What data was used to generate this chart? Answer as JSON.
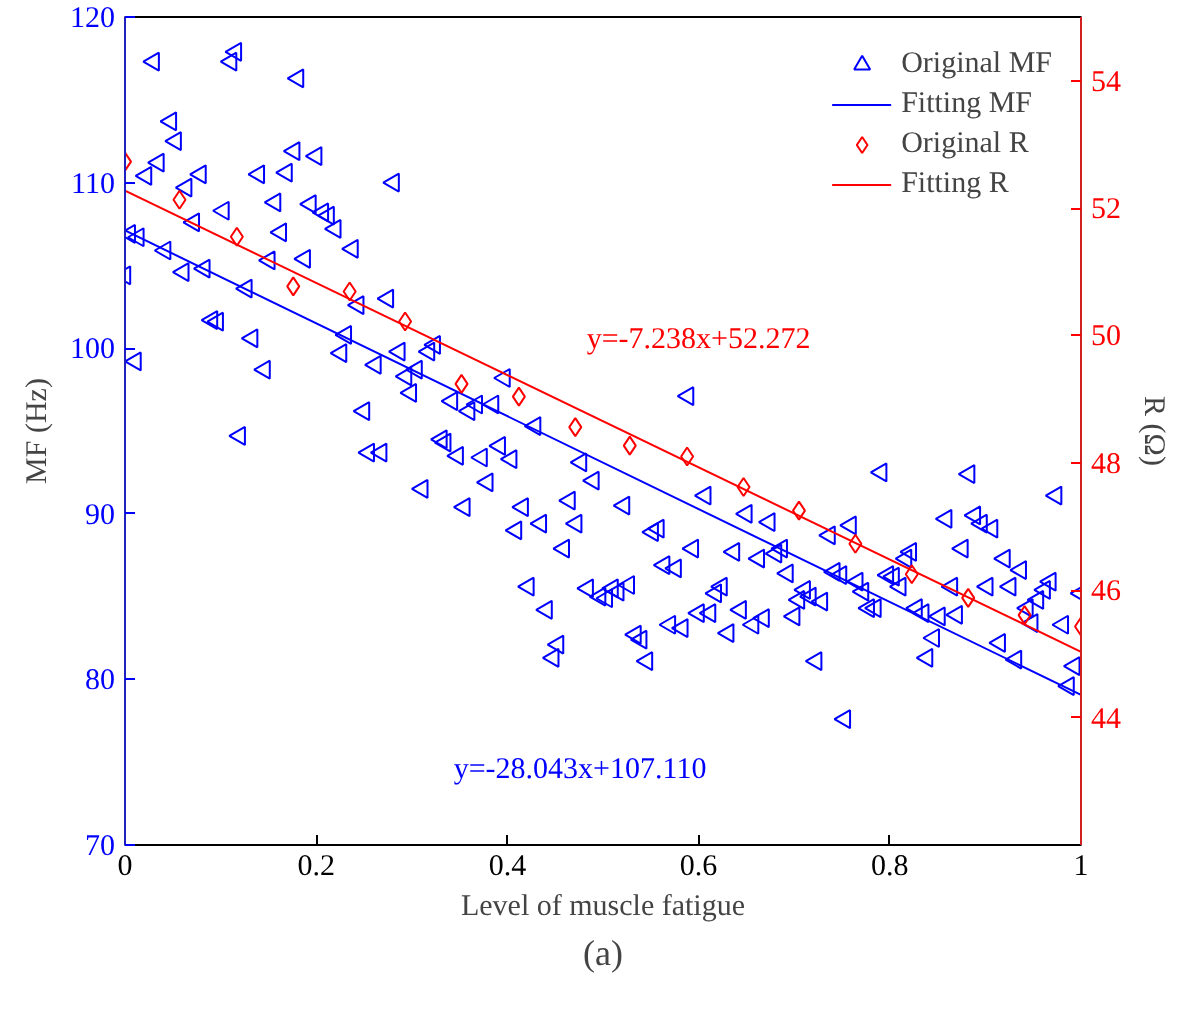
{
  "chart_data": {
    "type": "scatter",
    "xlabel": "Level of muscle fatigue",
    "ylabel": "MF (Hz)",
    "y2label": "R (Ω)",
    "xlim": [
      0,
      1
    ],
    "xticks": [
      0,
      0.2,
      0.4,
      0.6,
      0.8,
      1
    ],
    "ylim": [
      70,
      120
    ],
    "yticks": [
      70,
      80,
      90,
      100,
      110,
      120
    ],
    "y2lim": [
      42,
      55
    ],
    "y2ticks": [
      44,
      46,
      48,
      50,
      52,
      54
    ],
    "grid": false,
    "legend": "top right",
    "series": [
      {
        "name": "Original MF",
        "marker": "triangle",
        "color": "#0000ff",
        "x": [
          0,
          0.005,
          0.014,
          0.011,
          0.022,
          0.03,
          0.035,
          0.042,
          0.048,
          0.053,
          0.061,
          0.064,
          0.072,
          0.079,
          0.083,
          0.091,
          0.097,
          0.103,
          0.111,
          0.116,
          0.12,
          0.127,
          0.133,
          0.14,
          0.146,
          0.151,
          0.157,
          0.163,
          0.169,
          0.177,
          0.181,
          0.188,
          0.194,
          0.2,
          0.207,
          0.213,
          0.22,
          0.226,
          0.231,
          0.238,
          0.244,
          0.25,
          0.255,
          0.262,
          0.268,
          0.275,
          0.281,
          0.287,
          0.294,
          0.299,
          0.305,
          0.311,
          0.318,
          0.324,
          0.331,
          0.335,
          0.342,
          0.348,
          0.355,
          0.36,
          0.368,
          0.373,
          0.379,
          0.385,
          0.392,
          0.397,
          0.404,
          0.409,
          0.416,
          0.422,
          0.429,
          0.435,
          0.441,
          0.448,
          0.453,
          0.459,
          0.465,
          0.472,
          0.477,
          0.484,
          0.49,
          0.497,
          0.504,
          0.51,
          0.516,
          0.522,
          0.527,
          0.534,
          0.54,
          0.546,
          0.552,
          0.558,
          0.564,
          0.57,
          0.576,
          0.583,
          0.589,
          0.594,
          0.6,
          0.607,
          0.612,
          0.618,
          0.624,
          0.631,
          0.637,
          0.644,
          0.65,
          0.657,
          0.663,
          0.668,
          0.674,
          0.681,
          0.687,
          0.693,
          0.7,
          0.705,
          0.711,
          0.717,
          0.723,
          0.729,
          0.737,
          0.742,
          0.749,
          0.753,
          0.759,
          0.766,
          0.772,
          0.778,
          0.785,
          0.791,
          0.798,
          0.804,
          0.811,
          0.817,
          0.822,
          0.828,
          0.835,
          0.839,
          0.846,
          0.852,
          0.859,
          0.865,
          0.87,
          0.876,
          0.883,
          0.889,
          0.896,
          0.902,
          0.907,
          0.915,
          0.92,
          0.926,
          0.932,
          0.937,
          0.944,
          0.949,
          0.955,
          0.962,
          0.968,
          0.974,
          0.981,
          0.987,
          0.993,
          1.0
        ],
        "values": [
          104.4,
          106.9,
          106.7,
          99.2,
          110.4,
          117.3,
          111.2,
          105.9,
          113.7,
          112.5,
          104.6,
          109.7,
          107.6,
          110.5,
          104.8,
          101.7,
          101.6,
          108.3,
          117.3,
          117.9,
          94.7,
          103.6,
          100.6,
          110.5,
          98.7,
          105.3,
          108.8,
          107.0,
          110.6,
          111.9,
          116.3,
          105.4,
          108.7,
          111.6,
          108.2,
          108.0,
          107.2,
          99.7,
          100.8,
          106.0,
          102.6,
          96.2,
          93.7,
          99.0,
          93.7,
          103.0,
          110.0,
          99.8,
          98.3,
          97.3,
          98.7,
          91.5,
          99.8,
          100.2,
          94.5,
          94.3,
          96.8,
          93.5,
          90.4,
          96.2,
          96.6,
          93.4,
          91.9,
          96.6,
          94.1,
          98.2,
          93.3,
          89.0,
          90.4,
          85.6,
          95.3,
          89.4,
          84.2,
          81.3,
          82.1,
          87.9,
          90.8,
          89.4,
          93.1,
          85.5,
          92.0,
          85.0,
          84.9,
          85.5,
          85.3,
          90.5,
          85.7,
          82.7,
          82.4,
          81.1,
          88.9,
          89.1,
          86.9,
          83.3,
          86.7,
          83.1,
          97.1,
          87.9,
          84.0,
          91.1,
          84.0,
          85.2,
          85.6,
          82.8,
          87.7,
          84.2,
          90.0,
          83.3,
          87.3,
          83.7,
          89.5,
          87.6,
          87.9,
          86.4,
          83.8,
          84.8,
          85.4,
          85.0,
          81.1,
          84.7,
          88.7,
          86.5,
          86.3,
          77.6,
          89.3,
          85.9,
          85.3,
          84.3,
          84.3,
          92.5,
          86.3,
          86.2,
          85.6,
          87.3,
          87.7,
          84.3,
          84.0,
          81.3,
          82.5,
          83.8,
          89.7,
          85.6,
          83.9,
          87.9,
          92.4,
          89.9,
          89.4,
          85.6,
          89.1,
          82.2,
          87.3,
          85.6,
          81.2,
          86.6,
          84.3,
          83.4,
          84.8,
          85.4,
          85.9,
          91.1,
          83.3,
          79.6,
          80.8,
          85.2
        ]
      },
      {
        "name": "Fitting MF",
        "type": "line",
        "color": "#0000ff",
        "x": [
          0,
          1
        ],
        "values": [
          107.11,
          79.067
        ]
      },
      {
        "name": "Original R",
        "marker": "diamond",
        "axis": "y2",
        "color": "#ff0000",
        "x": [
          0,
          0.057,
          0.117,
          0.176,
          0.235,
          0.293,
          0.352,
          0.412,
          0.471,
          0.528,
          0.588,
          0.647,
          0.705,
          0.764,
          0.823,
          0.882,
          0.941,
          1.0
        ],
        "values": [
          52.73,
          52.13,
          51.55,
          50.77,
          50.69,
          50.22,
          49.24,
          49.04,
          48.56,
          48.27,
          48.1,
          47.62,
          47.25,
          46.73,
          46.25,
          45.88,
          45.61,
          45.43
        ]
      },
      {
        "name": "Fitting R",
        "type": "line",
        "axis": "y2",
        "color": "#ff0000",
        "x": [
          0,
          1
        ],
        "values": [
          52.272,
          45.034
        ]
      }
    ],
    "annotations": [
      "y=-28.043x+107.110",
      "y=-7.238x+52.272",
      "(a)"
    ]
  }
}
